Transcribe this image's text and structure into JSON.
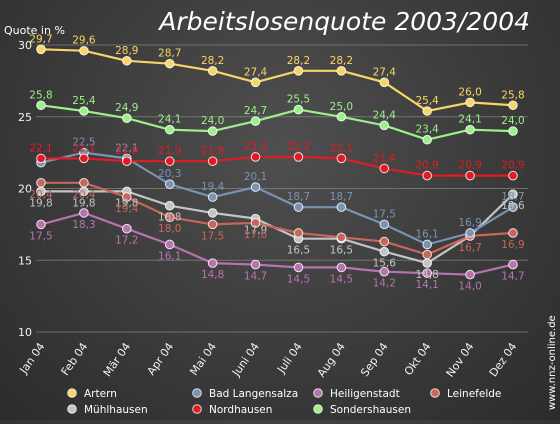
{
  "chart_data": {
    "type": "line",
    "title": "Arbeitslosenquote 2003/2004",
    "ylabel": "Quote in %",
    "xlabel": "",
    "credit": "www.nnz-online.de",
    "ylim": [
      10,
      30
    ],
    "yticks": [
      10,
      15,
      20,
      25,
      30
    ],
    "grid": true,
    "legend_position": "bottom",
    "categories": [
      "Jan 04",
      "Feb 04",
      "Mär 04",
      "Apr 04",
      "Mai 04",
      "Juni 04",
      "Juli 04",
      "Aug 04",
      "Sep 04",
      "Okt 04",
      "Nov 04",
      "Dez 04"
    ],
    "series": [
      {
        "name": "Artern",
        "color": "#f7d566",
        "values": [
          29.7,
          29.6,
          28.9,
          28.7,
          28.2,
          27.4,
          28.2,
          28.2,
          27.4,
          25.4,
          26.0,
          25.8
        ],
        "labels_shown": [
          true,
          true,
          true,
          true,
          true,
          true,
          true,
          true,
          true,
          true,
          true,
          true
        ]
      },
      {
        "name": "Bad Langensalza",
        "color": "#7893b4",
        "values": [
          21.8,
          22.5,
          22.1,
          20.3,
          19.4,
          20.1,
          18.7,
          18.7,
          17.5,
          16.1,
          16.9,
          18.7
        ],
        "labels_shown": [
          false,
          true,
          true,
          true,
          true,
          true,
          true,
          true,
          true,
          true,
          true,
          true
        ]
      },
      {
        "name": "Heiligenstadt",
        "color": "#b773b0",
        "values": [
          17.5,
          18.3,
          17.2,
          16.1,
          14.8,
          14.7,
          14.5,
          14.5,
          14.2,
          14.1,
          14.0,
          14.7
        ],
        "labels_shown": [
          true,
          true,
          true,
          true,
          true,
          true,
          true,
          true,
          true,
          true,
          true,
          true
        ]
      },
      {
        "name": "Leinefelde",
        "color": "#c8665a",
        "values": [
          20.4,
          20.4,
          19.4,
          18.0,
          17.5,
          17.6,
          16.9,
          16.6,
          16.3,
          15.4,
          16.7,
          16.9
        ],
        "labels_shown": [
          true,
          true,
          true,
          true,
          true,
          true,
          false,
          false,
          false,
          false,
          true,
          true
        ]
      },
      {
        "name": "Mühlhausen",
        "color": "#c4c4c4",
        "values": [
          19.8,
          19.8,
          19.8,
          18.8,
          18.3,
          17.9,
          16.5,
          16.5,
          15.6,
          14.8,
          16.7,
          19.6
        ],
        "labels_shown": [
          true,
          true,
          true,
          true,
          false,
          true,
          true,
          true,
          true,
          true,
          false,
          true
        ]
      },
      {
        "name": "Nordhausen",
        "color": "#e01b24",
        "values": [
          22.1,
          22.1,
          21.9,
          21.9,
          21.9,
          22.2,
          22.2,
          22.1,
          21.4,
          20.9,
          20.9,
          20.9
        ],
        "labels_shown": [
          true,
          true,
          true,
          true,
          true,
          true,
          true,
          true,
          true,
          true,
          true,
          true
        ]
      },
      {
        "name": "Sondershausen",
        "color": "#9cf08a",
        "values": [
          25.8,
          25.4,
          24.9,
          24.1,
          24.0,
          24.7,
          25.5,
          25.0,
          24.4,
          23.4,
          24.1,
          24.0
        ],
        "labels_shown": [
          true,
          true,
          true,
          true,
          true,
          true,
          true,
          true,
          true,
          true,
          true,
          true
        ]
      }
    ]
  }
}
